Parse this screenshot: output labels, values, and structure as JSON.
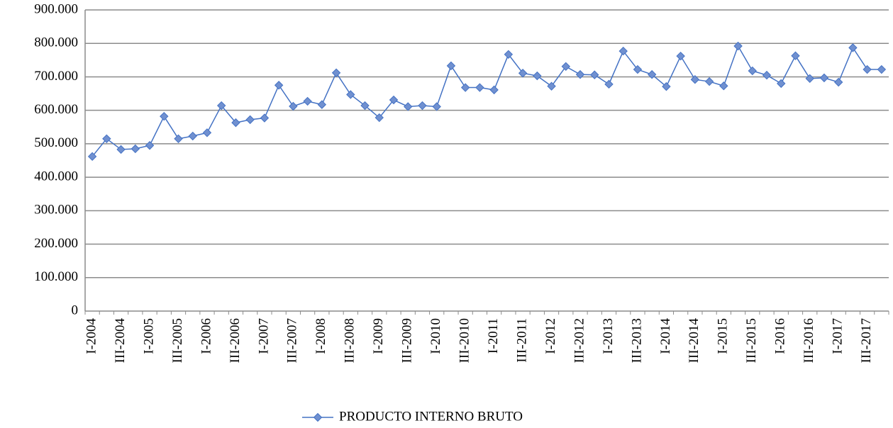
{
  "chart_data": {
    "type": "line",
    "categories": [
      "I-2004",
      null,
      "III-2004",
      null,
      "I-2005",
      null,
      "III-2005",
      null,
      "I-2006",
      null,
      "III-2006",
      null,
      "I-2007",
      null,
      "III-2007",
      null,
      "I-2008",
      null,
      "III-2008",
      null,
      "I-2009",
      null,
      "III-2009",
      null,
      "I-2010",
      null,
      "III-2010",
      null,
      "I-2011",
      null,
      "III-2011",
      null,
      "I-2012",
      null,
      "III-2012",
      null,
      "I-2013",
      null,
      "III-2013",
      null,
      "I-2014",
      null,
      "III-2014",
      null,
      "I-2015",
      null,
      "III-2015",
      null,
      "I-2016",
      null,
      "III-2016",
      null,
      "I-2017",
      null,
      "III-2017",
      null
    ],
    "series": [
      {
        "name": "PRODUCTO INTERNO BRUTO",
        "color": "#4472c4",
        "values": [
          462000,
          515000,
          483000,
          485000,
          495000,
          582000,
          515000,
          523000,
          533000,
          614000,
          563000,
          572000,
          577000,
          675000,
          612000,
          627000,
          617000,
          712000,
          647000,
          614000,
          578000,
          631000,
          611000,
          614000,
          611000,
          733000,
          668000,
          668000,
          661000,
          767000,
          711000,
          703000,
          672000,
          731000,
          707000,
          706000,
          678000,
          777000,
          722000,
          707000,
          671000,
          762000,
          692000,
          686000,
          673000,
          792000,
          718000,
          705000,
          680000,
          763000,
          695000,
          697000,
          684000,
          787000,
          722000,
          722000
        ]
      }
    ],
    "ylim": [
      0,
      900000
    ],
    "yticks": [
      0,
      {
        "value": 100000,
        "label": "100.000"
      },
      {
        "value": 200000,
        "label": "200.000"
      },
      {
        "value": 300000,
        "label": "300.000"
      },
      {
        "value": 400000,
        "label": "400.000"
      },
      {
        "value": 500000,
        "label": "500.000"
      },
      {
        "value": 600000,
        "label": "600.000"
      },
      {
        "value": 700000,
        "label": "700.000"
      },
      {
        "value": 800000,
        "label": "800.000"
      },
      {
        "value": 900000,
        "label": "900.000"
      }
    ],
    "grid": true,
    "legend": "bottom"
  }
}
